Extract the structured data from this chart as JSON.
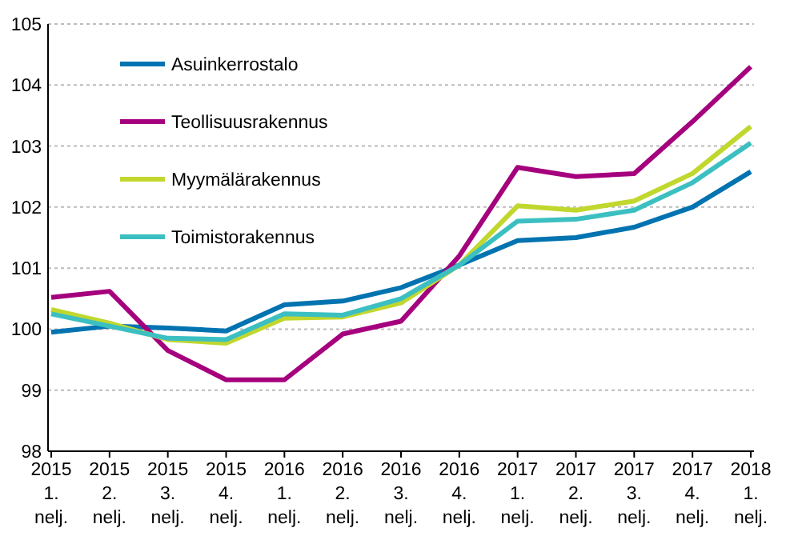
{
  "chart_data": {
    "type": "line",
    "categories": [
      "2015\n1.\nnelj.",
      "2015\n2.\nnelj.",
      "2015\n3.\nnelj.",
      "2015\n4.\nnelj.",
      "2016\n1.\nnelj.",
      "2016\n2.\nnelj.",
      "2016\n3.\nnelj.",
      "2016\n4.\nnelj.",
      "2017\n1.\nnelj.",
      "2017\n2.\nnelj.",
      "2017\n3.\nnelj.",
      "2017\n4.\nnelj.",
      "2018\n1.\nnelj."
    ],
    "series": [
      {
        "name": "Asuinkerrostalo",
        "color": "#0073b0",
        "values": [
          99.95,
          100.05,
          100.02,
          99.97,
          100.4,
          100.46,
          100.68,
          101.05,
          101.45,
          101.5,
          101.67,
          102.0,
          102.58
        ]
      },
      {
        "name": "Teollisuusrakennus",
        "color": "#a5007d",
        "values": [
          100.52,
          100.62,
          99.65,
          99.17,
          99.17,
          99.92,
          100.13,
          101.2,
          102.65,
          102.5,
          102.55,
          103.4,
          104.3
        ]
      },
      {
        "name": "Myymälärakennus",
        "color": "#c1d72e",
        "values": [
          100.32,
          100.1,
          99.83,
          99.77,
          100.18,
          100.2,
          100.43,
          101.05,
          102.02,
          101.95,
          102.1,
          102.55,
          103.32
        ]
      },
      {
        "name": "Toimistorakennus",
        "color": "#3cbfc1",
        "values": [
          100.25,
          100.05,
          99.85,
          99.83,
          100.25,
          100.23,
          100.5,
          101.05,
          101.77,
          101.8,
          101.95,
          102.4,
          103.05
        ]
      }
    ],
    "ylim": [
      98,
      105
    ],
    "yticks": [
      98,
      99,
      100,
      101,
      102,
      103,
      104,
      105
    ],
    "grid": "y",
    "legend": "top left",
    "marker": "none",
    "line_style": "solid"
  }
}
